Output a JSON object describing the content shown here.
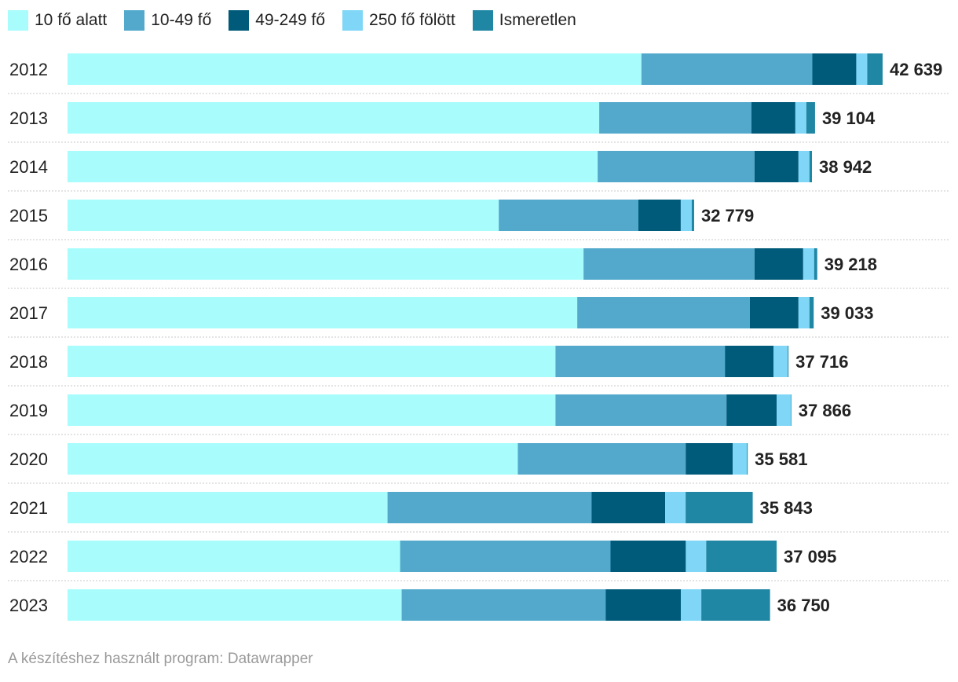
{
  "chart_data": {
    "type": "bar",
    "orientation": "horizontal",
    "stacked": true,
    "categories": [
      "2012",
      "2013",
      "2014",
      "2015",
      "2016",
      "2017",
      "2018",
      "2019",
      "2020",
      "2021",
      "2022",
      "2023"
    ],
    "series": [
      {
        "name": "10 fő alatt",
        "color": "#a8fcfc",
        "values": [
          30021,
          27814,
          27731,
          22558,
          26993,
          26665,
          25526,
          25526,
          23556,
          16741,
          17398,
          17480
        ]
      },
      {
        "name": "10-49 fő",
        "color": "#52a9cc",
        "values": [
          8942,
          7962,
          8208,
          7305,
          8946,
          9028,
          8864,
          8946,
          8782,
          10669,
          11007,
          10669
        ]
      },
      {
        "name": "49-249 fő",
        "color": "#005a7a",
        "values": [
          2298,
          2298,
          2298,
          2216,
          2544,
          2544,
          2544,
          2626,
          2462,
          3857,
          3939,
          3939
        ]
      },
      {
        "name": "250 fő fölött",
        "color": "#7fd6f6",
        "values": [
          574,
          574,
          574,
          574,
          574,
          574,
          739,
          739,
          739,
          1067,
          1067,
          1067
        ]
      },
      {
        "name": "Ismeretlen",
        "color": "#1f86a3",
        "values": [
          804,
          456,
          131,
          126,
          161,
          222,
          43,
          29,
          42,
          3509,
          3684,
          3595
        ]
      }
    ],
    "totals": [
      "42 639",
      "39 104",
      "38 942",
      "32 779",
      "39 218",
      "39 033",
      "37 716",
      "37 866",
      "35 581",
      "35 843",
      "37 095",
      "36 750"
    ],
    "xlim": [
      0,
      42639
    ],
    "legend_position": "top-left",
    "grid": false
  },
  "source_text": "A készítéshez használt program: Datawrapper"
}
